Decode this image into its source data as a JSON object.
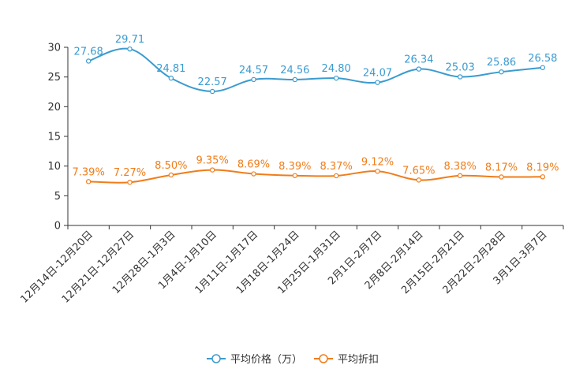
{
  "chart_data": {
    "type": "line",
    "title": "",
    "xlabel": "",
    "ylabel": "",
    "ylim": [
      0,
      30
    ],
    "yticks": [
      0,
      5,
      10,
      15,
      20,
      25,
      30
    ],
    "categories": [
      "12月14日-12月20日",
      "12月21日-12月27日",
      "12月28日-1月3日",
      "1月4日-1月10日",
      "1月11日-1月17日",
      "1月18日-1月24日",
      "1月25日-1月31日",
      "2月1日-2月7日",
      "2月8日-2月14日",
      "2月15日-2月21日",
      "2月22日-2月28日",
      "3月1日-3月7日"
    ],
    "series": [
      {
        "name": "平均价格（万）",
        "color": "#3a9bd0",
        "values": [
          27.68,
          29.71,
          24.81,
          22.57,
          24.57,
          24.56,
          24.8,
          24.07,
          26.34,
          25.03,
          25.86,
          26.58
        ],
        "labels": [
          "27.68",
          "29.71",
          "24.81",
          "22.57",
          "24.57",
          "24.56",
          "24.80",
          "24.07",
          "26.34",
          "25.03",
          "25.86",
          "26.58"
        ]
      },
      {
        "name": "平均折扣",
        "color": "#f07d1a",
        "values": [
          7.39,
          7.27,
          8.5,
          9.35,
          8.69,
          8.39,
          8.37,
          9.12,
          7.65,
          8.38,
          8.17,
          8.19
        ],
        "labels": [
          "7.39%",
          "7.27%",
          "8.50%",
          "9.35%",
          "8.69%",
          "8.39%",
          "8.37%",
          "9.12%",
          "7.65%",
          "8.38%",
          "8.17%",
          "8.19%"
        ]
      }
    ],
    "legend_position": "bottom-center"
  }
}
